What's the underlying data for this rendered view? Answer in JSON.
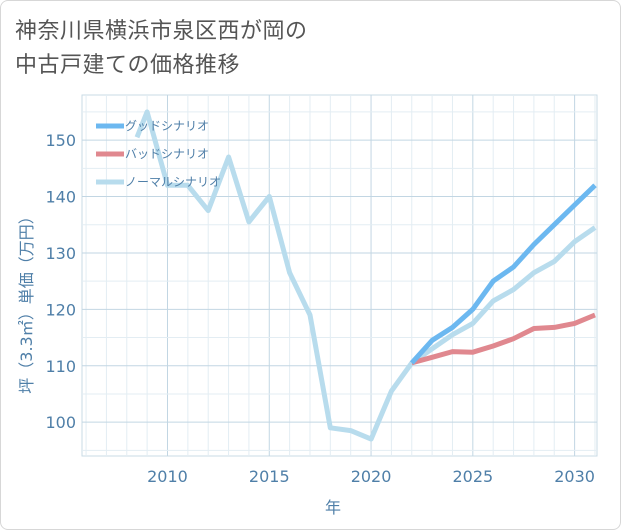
{
  "title": {
    "line1": "神奈川県横浜市泉区西が岡の",
    "line2": "中古戸建ての価格推移"
  },
  "chart_data": {
    "type": "line",
    "title": "神奈川県横浜市泉区西が岡の中古戸建ての価格推移",
    "xlabel": "年",
    "ylabel": "坪（3.3㎡）単価（万円）",
    "xlim": [
      2005.8,
      2031.1
    ],
    "ylim": [
      94,
      158
    ],
    "x_ticks": [
      2010,
      2015,
      2020,
      2025,
      2030
    ],
    "y_ticks": [
      100,
      110,
      120,
      130,
      140,
      150
    ],
    "grid": true,
    "legend_position": "top-left",
    "series": [
      {
        "name": "グッドシナリオ",
        "color": "#6cb8f0",
        "x": [
          2022,
          2023,
          2024,
          2025,
          2026,
          2027,
          2028,
          2029,
          2030,
          2031
        ],
        "values": [
          110.5,
          114.5,
          116.8,
          120.0,
          125.0,
          127.5,
          131.5,
          135.0,
          138.5,
          142.0
        ]
      },
      {
        "name": "バッドシナリオ",
        "color": "#e0888f",
        "x": [
          2022,
          2023,
          2024,
          2025,
          2026,
          2027,
          2028,
          2029,
          2030,
          2031
        ],
        "values": [
          110.5,
          111.5,
          112.5,
          112.4,
          113.5,
          114.8,
          116.6,
          116.8,
          117.5,
          119.0
        ]
      },
      {
        "name": "ノーマルシナリオ",
        "color": "#b8dced",
        "x": [
          2008.5,
          2009,
          2010,
          2011,
          2012,
          2013,
          2014,
          2015,
          2016,
          2017,
          2018,
          2019,
          2020,
          2021,
          2022,
          2023,
          2024,
          2025,
          2026,
          2027,
          2028,
          2029,
          2030,
          2031
        ],
        "values": [
          150.5,
          155.0,
          142.0,
          142.0,
          137.5,
          147.0,
          135.5,
          140.0,
          126.5,
          119.0,
          99.0,
          98.5,
          97.0,
          105.5,
          110.5,
          113.0,
          115.5,
          117.5,
          121.5,
          123.5,
          126.5,
          128.5,
          132.0,
          134.5
        ]
      }
    ]
  }
}
